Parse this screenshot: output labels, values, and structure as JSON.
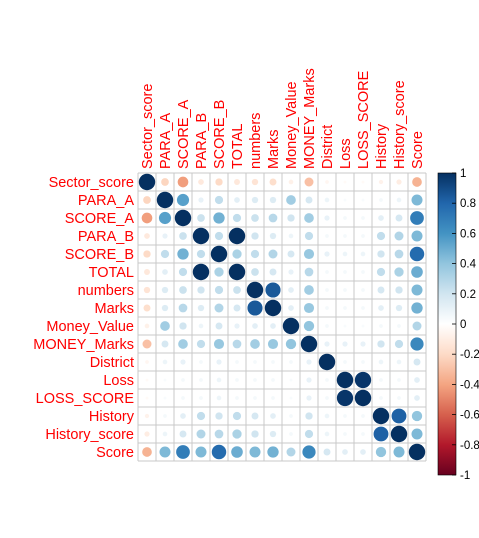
{
  "chart_data": {
    "type": "heatmap",
    "variables": [
      "Sector_score",
      "PARA_A",
      "SCORE_A",
      "PARA_B",
      "SCORE_B",
      "TOTAL",
      "numbers",
      "Marks",
      "Money_Value",
      "MONEY_Marks",
      "District",
      "Loss",
      "LOSS_SCORE",
      "History",
      "History_score",
      "Score"
    ],
    "matrix": [
      [
        1.0,
        -0.22,
        -0.42,
        -0.12,
        -0.2,
        -0.13,
        -0.15,
        -0.18,
        -0.08,
        -0.3,
        -0.05,
        -0.03,
        -0.03,
        -0.07,
        -0.1,
        -0.35
      ],
      [
        -0.22,
        1.0,
        0.55,
        0.1,
        0.25,
        0.12,
        0.15,
        0.15,
        0.35,
        0.18,
        0.08,
        0.03,
        0.03,
        0.05,
        0.08,
        0.45
      ],
      [
        -0.42,
        0.55,
        1.0,
        0.22,
        0.48,
        0.25,
        0.22,
        0.28,
        0.2,
        0.35,
        0.1,
        0.05,
        0.05,
        0.12,
        0.18,
        0.7
      ],
      [
        -0.12,
        0.1,
        0.22,
        1.0,
        0.25,
        1.0,
        0.2,
        0.15,
        0.08,
        0.25,
        0.05,
        0.05,
        0.05,
        0.25,
        0.3,
        0.45
      ],
      [
        -0.2,
        0.25,
        0.48,
        0.25,
        1.0,
        0.32,
        0.25,
        0.3,
        0.18,
        0.38,
        0.1,
        0.08,
        0.08,
        0.2,
        0.28,
        0.78
      ],
      [
        -0.13,
        0.12,
        0.25,
        1.0,
        0.32,
        1.0,
        0.22,
        0.18,
        0.1,
        0.28,
        0.05,
        0.05,
        0.05,
        0.25,
        0.32,
        0.5
      ],
      [
        -0.15,
        0.15,
        0.22,
        0.2,
        0.25,
        0.22,
        1.0,
        0.85,
        0.12,
        0.35,
        0.05,
        0.05,
        0.05,
        0.18,
        0.2,
        0.45
      ],
      [
        -0.18,
        0.15,
        0.28,
        0.15,
        0.3,
        0.18,
        0.85,
        1.0,
        0.12,
        0.38,
        0.05,
        0.05,
        0.05,
        0.12,
        0.15,
        0.48
      ],
      [
        -0.08,
        0.35,
        0.2,
        0.08,
        0.18,
        0.1,
        0.12,
        0.12,
        1.0,
        0.4,
        0.05,
        0.03,
        0.03,
        0.05,
        0.05,
        0.3
      ],
      [
        -0.3,
        0.18,
        0.35,
        0.25,
        0.38,
        0.28,
        0.35,
        0.38,
        0.4,
        1.0,
        0.1,
        0.1,
        0.1,
        0.2,
        0.25,
        0.65
      ],
      [
        -0.05,
        0.08,
        0.1,
        0.05,
        0.1,
        0.05,
        0.05,
        0.05,
        0.05,
        0.1,
        1.0,
        0.05,
        0.05,
        0.08,
        0.08,
        0.18
      ],
      [
        -0.03,
        0.03,
        0.05,
        0.05,
        0.08,
        0.05,
        0.05,
        0.05,
        0.03,
        0.1,
        0.05,
        1.0,
        0.98,
        0.05,
        0.05,
        0.12
      ],
      [
        -0.03,
        0.03,
        0.05,
        0.05,
        0.08,
        0.05,
        0.05,
        0.05,
        0.03,
        0.1,
        0.05,
        0.98,
        1.0,
        0.05,
        0.05,
        0.12
      ],
      [
        -0.07,
        0.05,
        0.12,
        0.25,
        0.2,
        0.25,
        0.18,
        0.12,
        0.05,
        0.2,
        0.08,
        0.05,
        0.05,
        1.0,
        0.82,
        0.4
      ],
      [
        -0.1,
        0.08,
        0.18,
        0.3,
        0.28,
        0.32,
        0.2,
        0.15,
        0.05,
        0.25,
        0.08,
        0.05,
        0.05,
        0.82,
        1.0,
        0.45
      ],
      [
        -0.35,
        0.45,
        0.7,
        0.45,
        0.78,
        0.5,
        0.45,
        0.48,
        0.3,
        0.65,
        0.18,
        0.12,
        0.12,
        0.4,
        0.45,
        1.0
      ]
    ],
    "color_scale": {
      "range": [
        -1,
        1
      ],
      "ticks": [
        "1",
        "0.8",
        "0.6",
        "0.4",
        "0.2",
        "0",
        "-0.2",
        "-0.4",
        "-0.6",
        "-0.8",
        "-1"
      ],
      "stops": [
        "#053061",
        "#2166AC",
        "#4393C3",
        "#92C5DE",
        "#D1E5F0",
        "#FFFFFF",
        "#FDDBC7",
        "#F4A582",
        "#D6604D",
        "#B2182B",
        "#67001F"
      ]
    },
    "title": "",
    "xlabel": "",
    "ylabel": "",
    "grid": true,
    "legend_placement": "right"
  }
}
